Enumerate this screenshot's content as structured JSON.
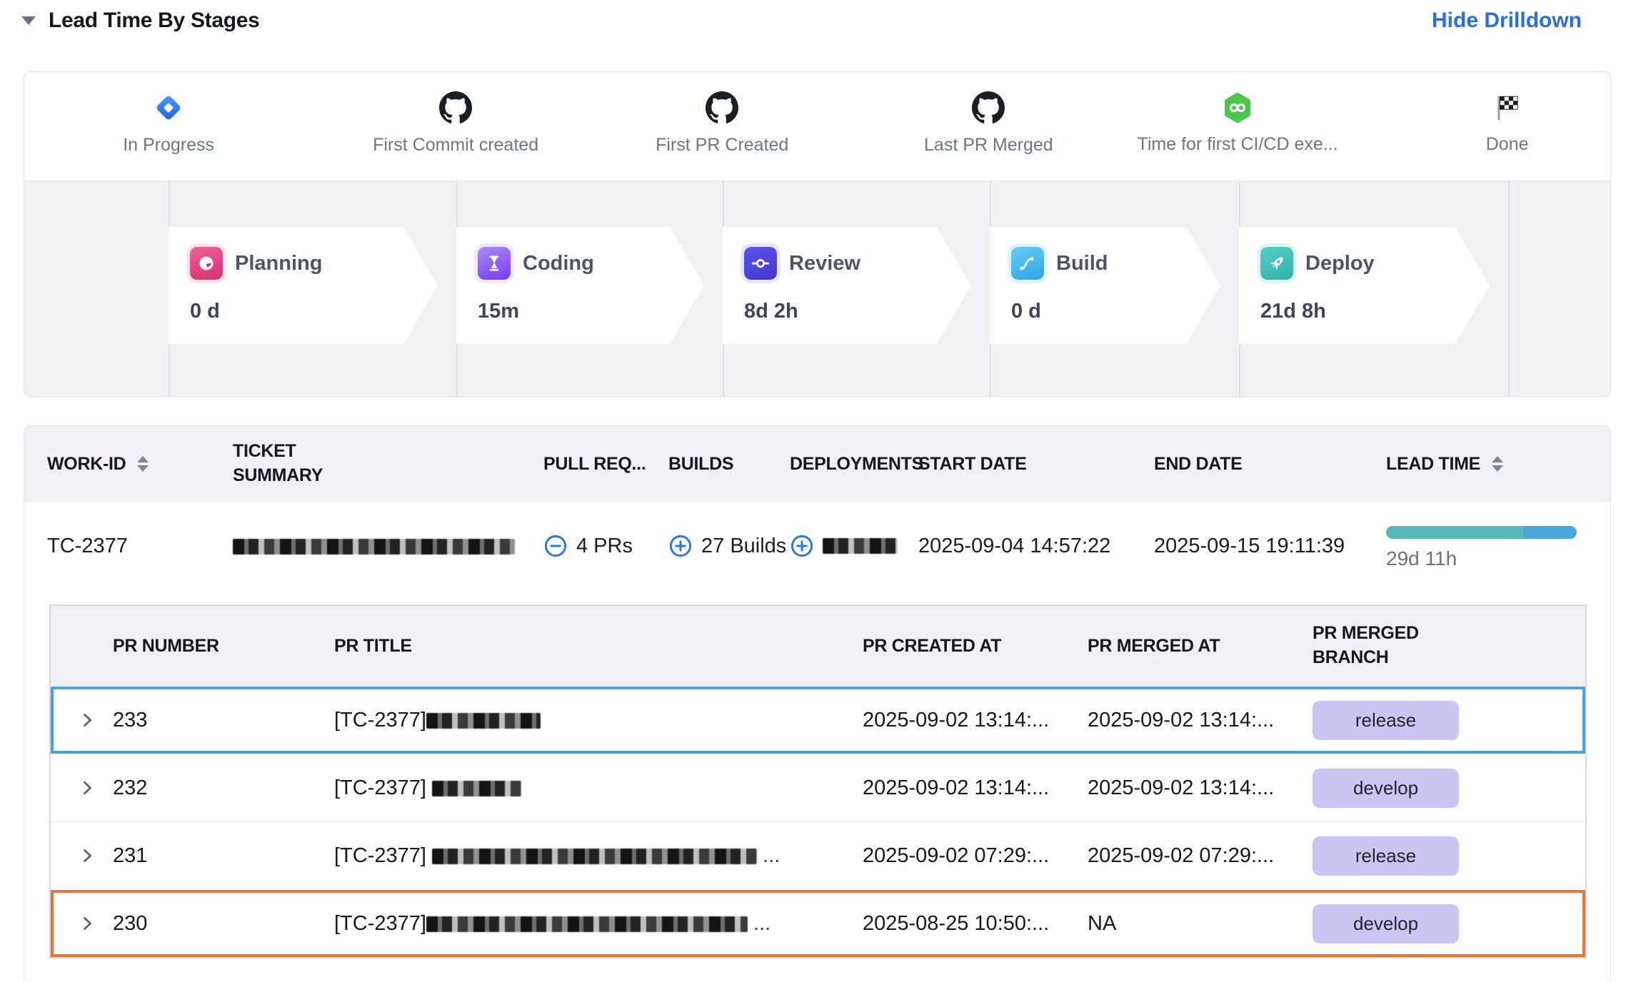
{
  "header": {
    "title": "Lead Time By Stages",
    "action_label": "Hide Drilldown"
  },
  "milestones": [
    {
      "label": "In Progress",
      "icon": "jira-status-icon"
    },
    {
      "label": "First Commit created",
      "icon": "github-icon"
    },
    {
      "label": "First PR Created",
      "icon": "github-icon"
    },
    {
      "label": "Last PR Merged",
      "icon": "github-icon"
    },
    {
      "label": "Time for first CI/CD exe...",
      "icon": "cicd-infinity-icon"
    },
    {
      "label": "Done",
      "icon": "finish-flag-icon"
    }
  ],
  "stages": [
    {
      "name": "Planning",
      "duration": "0 d",
      "accent": "#d92e74"
    },
    {
      "name": "Coding",
      "duration": "15m",
      "accent": "#8b5cf6"
    },
    {
      "name": "Review",
      "duration": "8d 2h",
      "accent": "#4f46e5"
    },
    {
      "name": "Build",
      "duration": "0 d",
      "accent": "#38b2ec"
    },
    {
      "name": "Deploy",
      "duration": "21d 8h",
      "accent": "#45c4bd"
    }
  ],
  "work_table": {
    "columns": {
      "work_id": "WORK-ID",
      "ticket_summary": "TICKET SUMMARY",
      "pull_requests": "PULL REQ...",
      "builds": "BUILDS",
      "deployments": "DEPLOYMENTS",
      "start_date": "START DATE",
      "end_date": "END DATE",
      "lead_time": "LEAD TIME"
    },
    "row": {
      "work_id": "TC-2377",
      "ticket_summary_redacted": true,
      "pull_requests": "4 PRs",
      "builds": "27 Builds",
      "deployments_redacted": true,
      "start_date": "2025-09-04 14:57:22",
      "end_date": "2025-09-15 19:11:39",
      "lead_time": "29d 11h",
      "lead_time_bar": {
        "teal_pct": 72,
        "blue_pct": 28,
        "teal_color": "#57b8ba",
        "blue_color": "#4aa7de"
      }
    }
  },
  "pr_table": {
    "columns": {
      "number": "PR NUMBER",
      "title": "PR TITLE",
      "created": "PR CREATED AT",
      "merged": "PR MERGED AT",
      "branch": "PR MERGED BRANCH"
    },
    "rows": [
      {
        "number": "233",
        "title_prefix": "[TC-2377]",
        "title_redacted": true,
        "title_suffix": "",
        "created": "2025-09-02 13:14:...",
        "merged": "2025-09-02 13:14:...",
        "branch": "release",
        "highlight": "blue"
      },
      {
        "number": "232",
        "title_prefix": "[TC-2377]",
        "title_redacted": true,
        "title_suffix": "",
        "created": "2025-09-02 13:14:...",
        "merged": "2025-09-02 13:14:...",
        "branch": "develop",
        "highlight": "none"
      },
      {
        "number": "231",
        "title_prefix": "[TC-2377]",
        "title_redacted": true,
        "title_suffix": "...",
        "created": "2025-09-02 07:29:...",
        "merged": "2025-09-02 07:29:...",
        "branch": "release",
        "highlight": "none"
      },
      {
        "number": "230",
        "title_prefix": "[TC-2377]",
        "title_redacted": true,
        "title_suffix": "...",
        "created": "2025-08-25 10:50:...",
        "merged": "NA",
        "branch": "develop",
        "highlight": "orange"
      }
    ]
  },
  "colors": {
    "highlight_blue": "#4aa4dc",
    "highlight_orange": "#e7763b",
    "badge_bg": "#c9c6f4",
    "link_blue": "#2b6fd6",
    "expand_icon_blue": "#2979e0"
  }
}
